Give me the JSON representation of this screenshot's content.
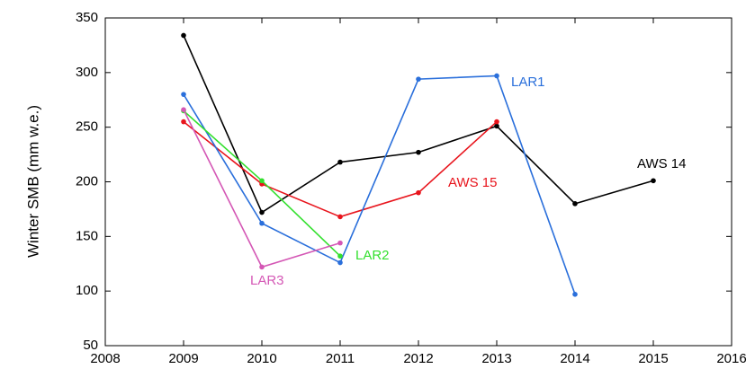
{
  "chart_data": {
    "type": "line",
    "y_label": "Winter SMB (mm w.e.)",
    "xlim": [
      2008,
      2016
    ],
    "xticks": [
      2008,
      2009,
      2010,
      2011,
      2012,
      2013,
      2014,
      2015,
      2016
    ],
    "ylim": [
      50,
      350
    ],
    "yticks": [
      50,
      100,
      150,
      200,
      250,
      300,
      350
    ],
    "grid": false,
    "series": [
      {
        "name": "AWS 14",
        "color": "#000000",
        "x": [
          2009,
          2010,
          2011,
          2012,
          2013,
          2014,
          2015
        ],
        "values": [
          334,
          172,
          218,
          227,
          251,
          180,
          201
        ]
      },
      {
        "name": "AWS 15",
        "color": "#e8141c",
        "x": [
          2009,
          2010,
          2011,
          2012,
          2013
        ],
        "values": [
          255,
          198,
          168,
          190,
          255
        ]
      },
      {
        "name": "LAR1",
        "color": "#2a6fdb",
        "x": [
          2009,
          2010,
          2011,
          2012,
          2013,
          2014
        ],
        "values": [
          280,
          162,
          126,
          294,
          297,
          97
        ]
      },
      {
        "name": "LAR2",
        "color": "#33e02e",
        "x": [
          2009,
          2010,
          2011
        ],
        "values": [
          265,
          201,
          132
        ]
      },
      {
        "name": "LAR3",
        "color": "#d457b5",
        "x": [
          2009,
          2010,
          2011
        ],
        "values": [
          266,
          122,
          144
        ]
      }
    ]
  }
}
